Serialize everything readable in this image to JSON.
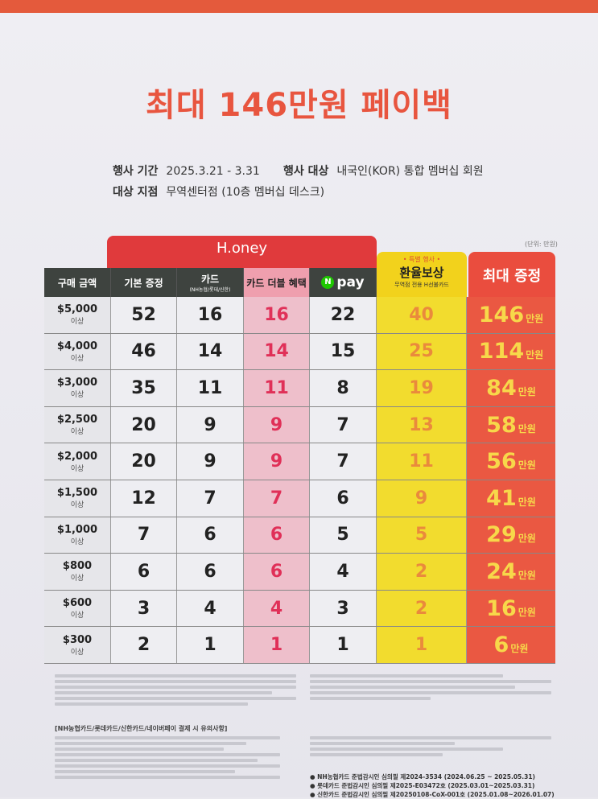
{
  "title": "최대 146만원 페이백",
  "info": {
    "period_label": "행사 기간",
    "period": "2025.3.21 - 3.31",
    "target_label": "행사 대상",
    "target": "내국인(KOR) 통합 멤버십 회원",
    "store_label": "대상 지점",
    "store": "무역센터점 (10층 멤버십 데스크)"
  },
  "unit": "(단위: 만원)",
  "groups": {
    "honey": "H.oney",
    "special": "• 특별 행사 •",
    "exchange": "환율보상",
    "exchange_sub": "무역점 전용 H선불카드",
    "max": "최대 증정"
  },
  "headers": [
    "구매 금액",
    "기본 증정",
    "카드",
    "카드 더블 혜택",
    "pay",
    "환율보상",
    "최대 증정"
  ],
  "card_sub": "(NH농협/롯데/신한)",
  "npay_logo": "N",
  "row_suffix": "이상",
  "max_suffix": "만원",
  "rows": [
    {
      "amount": "$5,000",
      "base": "52",
      "card": "16",
      "double": "16",
      "npay": "22",
      "exchange": "40",
      "max": "146"
    },
    {
      "amount": "$4,000",
      "base": "46",
      "card": "14",
      "double": "14",
      "npay": "15",
      "exchange": "25",
      "max": "114"
    },
    {
      "amount": "$3,000",
      "base": "35",
      "card": "11",
      "double": "11",
      "npay": "8",
      "exchange": "19",
      "max": "84"
    },
    {
      "amount": "$2,500",
      "base": "20",
      "card": "9",
      "double": "9",
      "npay": "7",
      "exchange": "13",
      "max": "58"
    },
    {
      "amount": "$2,000",
      "base": "20",
      "card": "9",
      "double": "9",
      "npay": "7",
      "exchange": "11",
      "max": "56"
    },
    {
      "amount": "$1,500",
      "base": "12",
      "card": "7",
      "double": "7",
      "npay": "6",
      "exchange": "9",
      "max": "41"
    },
    {
      "amount": "$1,000",
      "base": "7",
      "card": "6",
      "double": "6",
      "npay": "5",
      "exchange": "5",
      "max": "29"
    },
    {
      "amount": "$800",
      "base": "6",
      "card": "6",
      "double": "6",
      "npay": "4",
      "exchange": "2",
      "max": "24"
    },
    {
      "amount": "$600",
      "base": "3",
      "card": "4",
      "double": "4",
      "npay": "3",
      "exchange": "2",
      "max": "16"
    },
    {
      "amount": "$300",
      "base": "2",
      "card": "1",
      "double": "1",
      "npay": "1",
      "exchange": "1",
      "max": "6"
    }
  ],
  "notes_heading": "[NH농협카드/롯데카드/신한카드/네이버페이 결제 시 유의사항]",
  "approvals": [
    "● NH농협카드 준법감시인 심의필 제2024-3534 (2024.06.25 ~ 2025.05.31)",
    "● 롯데카드 준법감시인 심의필 제2025-E03472호 (2025.03.01~2025.03.31)",
    "● 신한카드 준법감시인 심의필 제20250108-CoX-001호 (2025.01.08~2026.01.07)"
  ],
  "colors": {
    "title": "#e8553f",
    "honey": "#e03a3c",
    "exchange": "#f2d21c",
    "max": "#ea4d3e",
    "header": "#3e433f",
    "double": "#ef9fae"
  }
}
